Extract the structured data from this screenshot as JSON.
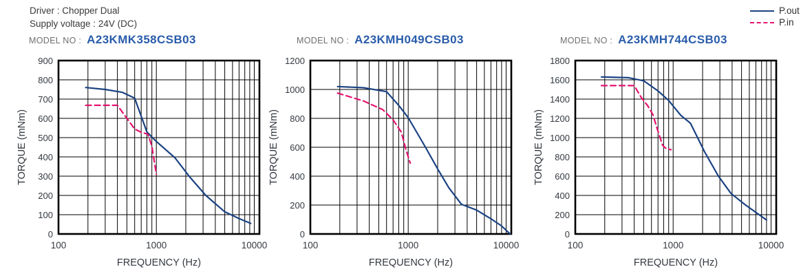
{
  "header": {
    "driver_line": "Driver : Chopper Dual",
    "supply_line": "Supply voltage : 24V (DC)"
  },
  "legend": {
    "items": [
      {
        "label": "P.out",
        "line_style": "solid",
        "color": "#1a4282"
      },
      {
        "label": "P.in",
        "line_style": "dashed",
        "color": "#e4136f"
      }
    ]
  },
  "colors": {
    "pout": "#1a4282",
    "pin": "#e4136f",
    "model_no_text": "#2a5caa",
    "model_label_text": "#6f6f6f",
    "header_text": "#3a3a3a",
    "axis_text": "#33383f",
    "grid": "#000000"
  },
  "chart_data": [
    {
      "type": "line",
      "model_label": "MODEL NO :",
      "model_no": "A23KMK358CSB03",
      "xlabel": "FREQUENCY (Hz)",
      "ylabel": "TORQUE (mNm)",
      "xscale": "log",
      "grid": true,
      "xlim": [
        100,
        11300
      ],
      "ylim": [
        0,
        900
      ],
      "ygrid_step": 100,
      "yticks": [
        0,
        100,
        200,
        300,
        400,
        500,
        600,
        700,
        800,
        900
      ],
      "xticks": [
        100,
        1000,
        10000
      ],
      "series": [
        {
          "name": "P.out",
          "style": "solid",
          "points": [
            [
              190,
              760
            ],
            [
              300,
              750
            ],
            [
              450,
              735
            ],
            [
              600,
              705
            ],
            [
              800,
              530
            ],
            [
              1000,
              480
            ],
            [
              1550,
              395
            ],
            [
              2200,
              295
            ],
            [
              3200,
              200
            ],
            [
              5000,
              115
            ],
            [
              7000,
              80
            ],
            [
              9200,
              55
            ]
          ]
        },
        {
          "name": "P.in",
          "style": "dashed",
          "points": [
            [
              190,
              668
            ],
            [
              400,
              668
            ],
            [
              500,
              600
            ],
            [
              600,
              545
            ],
            [
              700,
              528
            ],
            [
              820,
              518
            ],
            [
              900,
              455
            ],
            [
              1000,
              310
            ]
          ]
        }
      ]
    },
    {
      "type": "line",
      "model_label": "MODEL NO :",
      "model_no": "A23KMH049CSB03",
      "xlabel": "FREQUENCY (Hz)",
      "ylabel": "TORQUE (mNm)",
      "xscale": "log",
      "grid": true,
      "xlim": [
        100,
        11300
      ],
      "ylim": [
        0,
        1200
      ],
      "ygrid_step": 200,
      "yticks": [
        0,
        200,
        400,
        600,
        800,
        1000,
        1200
      ],
      "xticks": [
        100,
        1000,
        10000
      ],
      "series": [
        {
          "name": "P.out",
          "style": "solid",
          "points": [
            [
              190,
              1020
            ],
            [
              350,
              1012
            ],
            [
              600,
              985
            ],
            [
              800,
              890
            ],
            [
              1000,
              805
            ],
            [
              1500,
              600
            ],
            [
              2000,
              450
            ],
            [
              2600,
              320
            ],
            [
              3500,
              205
            ],
            [
              5000,
              165
            ],
            [
              7000,
              105
            ],
            [
              9000,
              55
            ],
            [
              11000,
              0
            ]
          ]
        },
        {
          "name": "P.in",
          "style": "dashed",
          "points": [
            [
              190,
              975
            ],
            [
              350,
              920
            ],
            [
              550,
              860
            ],
            [
              700,
              790
            ],
            [
              850,
              705
            ],
            [
              950,
              580
            ],
            [
              1050,
              490
            ]
          ]
        }
      ]
    },
    {
      "type": "line",
      "model_label": "MODEL NO :",
      "model_no": "A23KMH744CSB03",
      "xlabel": "FREQUENCY (Hz)",
      "ylabel": "TORQUE (mNm)",
      "xscale": "log",
      "grid": true,
      "xlim": [
        100,
        11300
      ],
      "ylim": [
        0,
        1800
      ],
      "ygrid_step": 200,
      "yticks": [
        0,
        200,
        400,
        600,
        800,
        1000,
        1200,
        1400,
        1600,
        1800
      ],
      "xticks": [
        100,
        1000,
        10000
      ],
      "series": [
        {
          "name": "P.out",
          "style": "solid",
          "points": [
            [
              185,
              1630
            ],
            [
              350,
              1622
            ],
            [
              500,
              1590
            ],
            [
              700,
              1485
            ],
            [
              900,
              1385
            ],
            [
              1200,
              1230
            ],
            [
              1500,
              1150
            ],
            [
              2100,
              850
            ],
            [
              2900,
              600
            ],
            [
              3900,
              420
            ],
            [
              5500,
              300
            ],
            [
              9000,
              145
            ]
          ]
        },
        {
          "name": "P.in",
          "style": "dashed",
          "points": [
            [
              185,
              1540
            ],
            [
              400,
              1540
            ],
            [
              470,
              1420
            ],
            [
              550,
              1330
            ],
            [
              620,
              1240
            ],
            [
              700,
              1065
            ],
            [
              780,
              920
            ],
            [
              850,
              885
            ],
            [
              950,
              875
            ]
          ]
        }
      ]
    }
  ]
}
